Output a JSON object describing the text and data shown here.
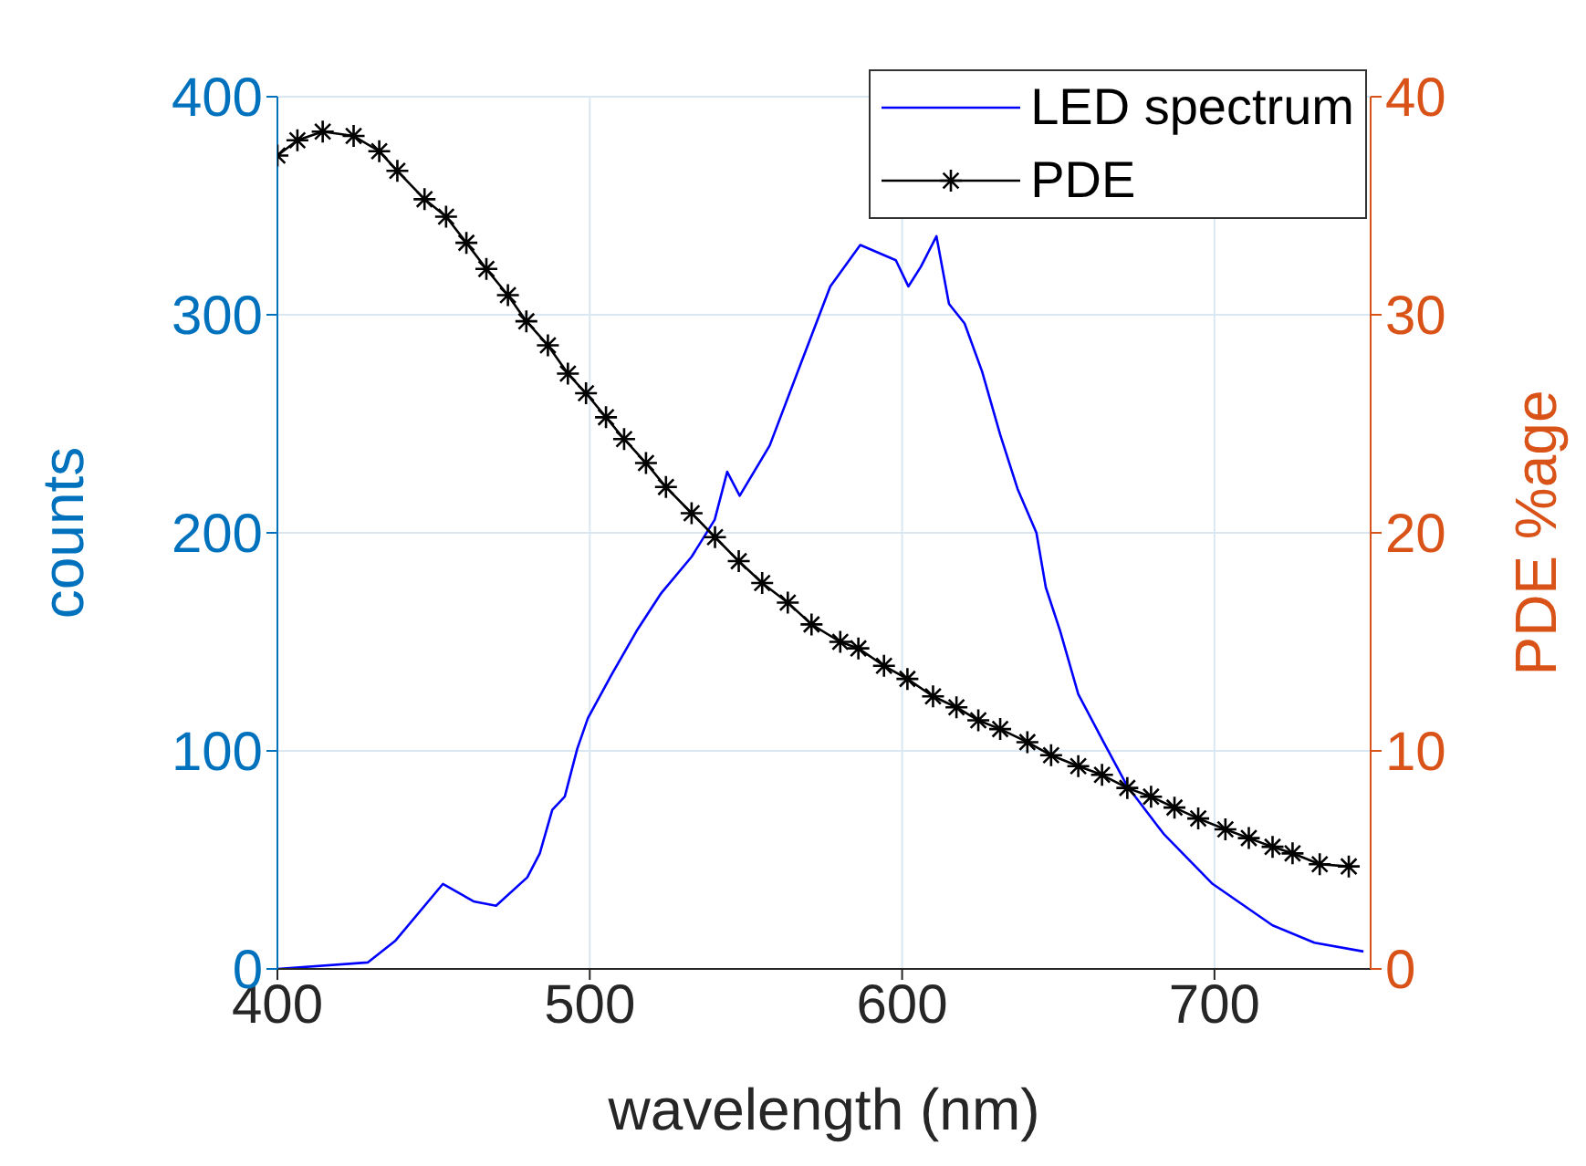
{
  "chart_data": {
    "type": "line",
    "xlabel": "wavelength (nm)",
    "ylabel": "counts",
    "y2label": "PDE %age",
    "xlim": [
      400,
      750
    ],
    "xticks": [
      400,
      500,
      600,
      700
    ],
    "ylim": [
      0,
      400
    ],
    "yticks": [
      0,
      100,
      200,
      300,
      400
    ],
    "y2lim": [
      0,
      40
    ],
    "y2ticks": [
      0,
      10,
      20,
      30,
      40
    ],
    "grid": true,
    "legend": "top right",
    "series": [
      {
        "name": "LED spectrum",
        "color": "#0000ff",
        "marker": "none",
        "x": [
          400,
          429,
          437.8,
          453,
          462.8,
          470,
          480,
          484,
          488,
          492,
          496,
          499.4,
          507,
          515,
          522.7,
          532.6,
          540,
          544,
          548,
          557.6,
          567.4,
          577,
          586.6,
          598,
          602,
          606,
          611,
          615,
          620,
          625.6,
          631.4,
          637,
          643,
          646,
          650.6,
          656.4,
          664.5,
          672,
          683.7,
          699.4,
          718.6,
          732,
          747.7
        ],
        "values": [
          0,
          3,
          13,
          39,
          31,
          29,
          42,
          53,
          73,
          79,
          101,
          115,
          135,
          155,
          172,
          189,
          206,
          228,
          217,
          240,
          277,
          313,
          332,
          325,
          313,
          322,
          336,
          305,
          296,
          274,
          245,
          220,
          200,
          175,
          155,
          126,
          104,
          84,
          62,
          39,
          20,
          12,
          8
        ]
      },
      {
        "name": "PDE",
        "color": "#000000",
        "marker": "cross",
        "axis": "y2",
        "x": [
          400,
          406.4,
          414.5,
          424.4,
          432.6,
          438.4,
          447.1,
          454,
          460.5,
          466.9,
          473.8,
          479.7,
          486.6,
          493,
          498.8,
          505.2,
          511,
          518,
          524.4,
          532.6,
          540.1,
          547.7,
          555.2,
          563.4,
          571,
          580.2,
          586,
          594.2,
          601.7,
          609.9,
          617.4,
          624.4,
          631.4,
          640.1,
          647.7,
          656.4,
          664,
          672.1,
          679.7,
          687.2,
          694.8,
          703.5,
          711,
          718.6,
          725,
          733.7,
          743
        ],
        "values": [
          37.3,
          38.0,
          38.4,
          38.2,
          37.5,
          36.6,
          35.3,
          34.5,
          33.3,
          32.1,
          30.9,
          29.7,
          28.6,
          27.3,
          26.4,
          25.3,
          24.3,
          23.2,
          22.1,
          20.9,
          19.8,
          18.7,
          17.7,
          16.8,
          15.8,
          15.0,
          14.7,
          13.9,
          13.3,
          12.5,
          12.0,
          11.4,
          11.0,
          10.4,
          9.8,
          9.3,
          8.9,
          8.3,
          7.9,
          7.4,
          6.9,
          6.4,
          6.0,
          5.6,
          5.3,
          4.8,
          4.7
        ]
      }
    ]
  }
}
